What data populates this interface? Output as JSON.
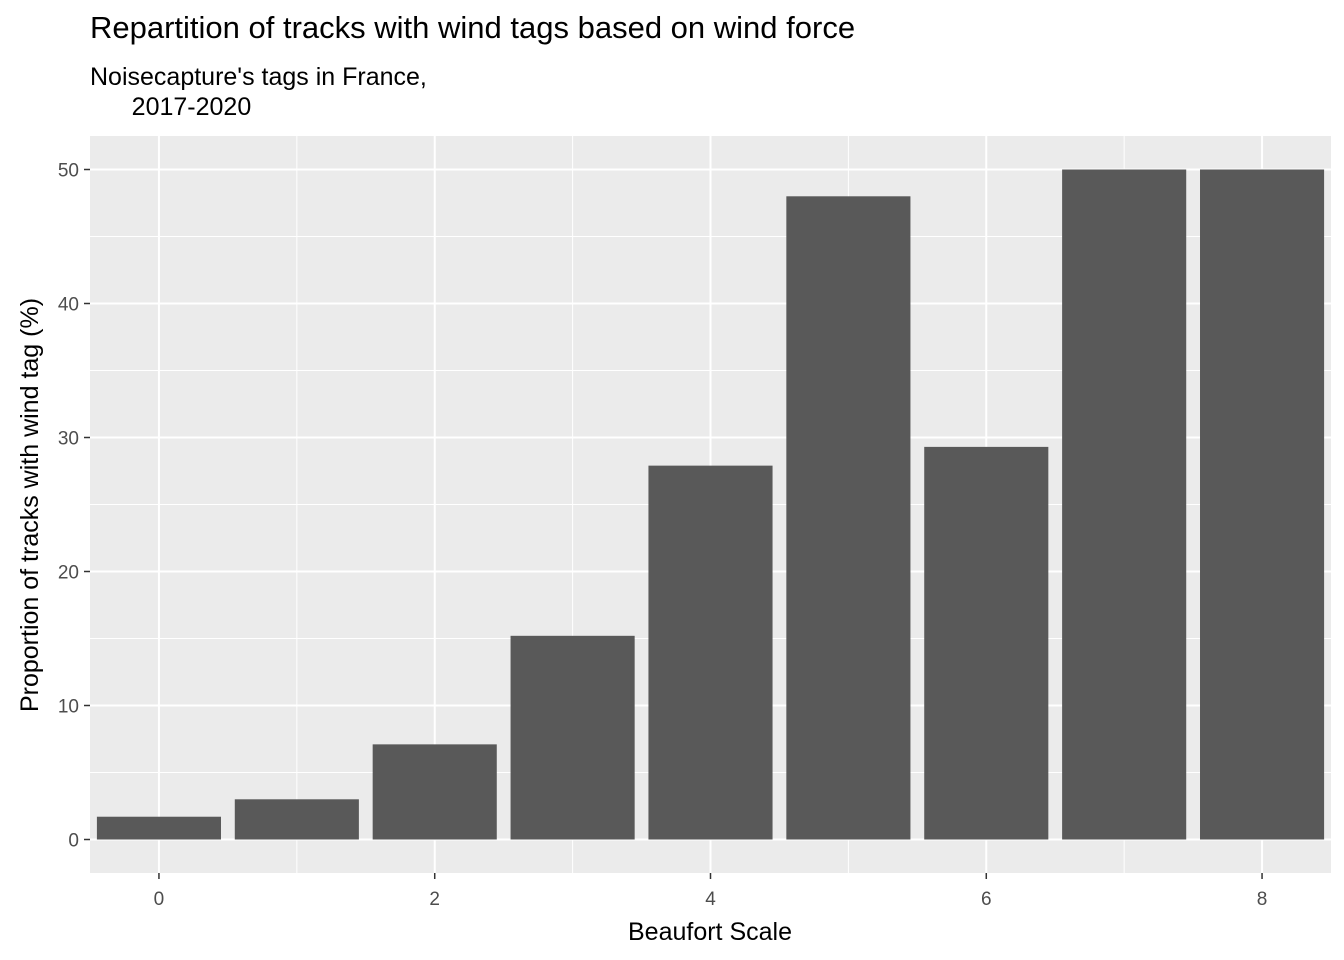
{
  "chart_data": {
    "type": "bar",
    "title": "Repartition of tracks with wind tags based on wind force",
    "subtitle": "Noisecapture's tags in France,\n      2017-2020",
    "xlabel": "Beaufort Scale",
    "ylabel": "Proportion of tracks with wind tag (%)",
    "x": [
      0,
      1,
      2,
      3,
      4,
      5,
      6,
      7,
      8
    ],
    "values": [
      1.7,
      3.0,
      7.1,
      15.2,
      27.9,
      48.0,
      29.3,
      50.0,
      50.0
    ],
    "xlim": [
      -0.5,
      8.5
    ],
    "ylim": [
      -2.5,
      52.5
    ],
    "xticks": [
      "0",
      "2",
      "4",
      "6",
      "8"
    ],
    "yticks": [
      "0",
      "10",
      "20",
      "30",
      "40",
      "50"
    ],
    "bar_color": "#595959",
    "panel_color": "#EBEBEB",
    "grid": true,
    "legend": "none"
  }
}
